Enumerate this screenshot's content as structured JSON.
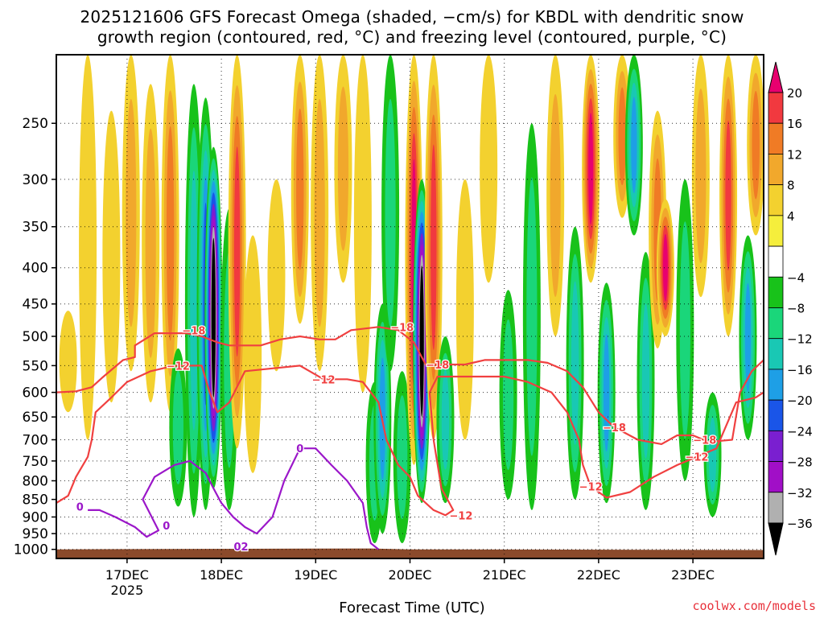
{
  "header": {
    "title_line1": "2025121606 GFS Forecast Omega (shaded, −cm/s) for KBDL with dendritic snow",
    "title_line2": "growth region (contoured, red, °C) and freezing level (contoured, purple, °C)"
  },
  "footer": {
    "xlabel": "Forecast Time (UTC)",
    "watermark": "coolwx.com/models"
  },
  "chart_data": {
    "type": "heatmap",
    "title": "2025121606 GFS Forecast Omega (shaded, −cm/s) for KBDL",
    "xlabel": "Forecast Time (UTC)",
    "ylabel": "",
    "y_axis": {
      "scale": "log-pressure",
      "units": "hPa",
      "ticks": [
        250,
        300,
        350,
        400,
        450,
        500,
        550,
        600,
        650,
        700,
        750,
        800,
        850,
        900,
        950,
        1000
      ],
      "range": [
        1030,
        200
      ]
    },
    "x_axis": {
      "start": "2025-12-16 06 UTC",
      "ticks": [
        {
          "label": "17DEC",
          "sub": "2025",
          "hour": 18
        },
        {
          "label": "18DEC",
          "sub": "",
          "hour": 42
        },
        {
          "label": "19DEC",
          "sub": "",
          "hour": 66
        },
        {
          "label": "20DEC",
          "sub": "",
          "hour": 90
        },
        {
          "label": "21DEC",
          "sub": "",
          "hour": 114
        },
        {
          "label": "22DEC",
          "sub": "",
          "hour": 138
        },
        {
          "label": "23DEC",
          "sub": "",
          "hour": 162
        }
      ],
      "range_hours": [
        0,
        180
      ]
    },
    "colorbar": {
      "labels": [
        "20",
        "16",
        "12",
        "8",
        "4",
        "−4",
        "−8",
        "−12",
        "−16",
        "−20",
        "−24",
        "−28",
        "−32",
        "−36"
      ],
      "colors": [
        "#e8006f",
        "#f1393f",
        "#f07b25",
        "#f1a82c",
        "#f3d12f",
        "#f5ee3c",
        "#ffffff",
        "#18c21a",
        "#1ad67a",
        "#19c8b4",
        "#1e9fe6",
        "#1a55e8",
        "#7a1fd0",
        "#a10fc7",
        "#b0b0b0",
        "#000000"
      ]
    },
    "omega_columns": [
      {
        "hour": 3,
        "p_top": 460,
        "p_bot": 640,
        "value": 6
      },
      {
        "hour": 8,
        "p_top": 200,
        "p_bot": 700,
        "value": 5
      },
      {
        "hour": 14,
        "p_top": 240,
        "p_bot": 620,
        "value": 4
      },
      {
        "hour": 19,
        "p_top": 200,
        "p_bot": 560,
        "value": 8
      },
      {
        "hour": 24,
        "p_top": 220,
        "p_bot": 620,
        "value": 10
      },
      {
        "hour": 29,
        "p_top": 200,
        "p_bot": 640,
        "value": 13
      },
      {
        "hour": 31,
        "p_top": 520,
        "p_bot": 870,
        "value": -9
      },
      {
        "hour": 35,
        "p_top": 220,
        "p_bot": 900,
        "value": -13
      },
      {
        "hour": 38,
        "p_top": 230,
        "p_bot": 880,
        "value": -20
      },
      {
        "hour": 40,
        "p_top": 270,
        "p_bot": 820,
        "value": -40
      },
      {
        "hour": 44,
        "p_top": 330,
        "p_bot": 880,
        "value": -10
      },
      {
        "hour": 46,
        "p_top": 200,
        "p_bot": 720,
        "value": 18
      },
      {
        "hour": 50,
        "p_top": 360,
        "p_bot": 780,
        "value": 6
      },
      {
        "hour": 56,
        "p_top": 300,
        "p_bot": 560,
        "value": 5
      },
      {
        "hour": 62,
        "p_top": 200,
        "p_bot": 480,
        "value": 13
      },
      {
        "hour": 67,
        "p_top": 200,
        "p_bot": 560,
        "value": 8
      },
      {
        "hour": 73,
        "p_top": 200,
        "p_bot": 420,
        "value": 10
      },
      {
        "hour": 78,
        "p_top": 200,
        "p_bot": 600,
        "value": 5
      },
      {
        "hour": 81,
        "p_top": 580,
        "p_bot": 980,
        "value": -9
      },
      {
        "hour": 83,
        "p_top": 450,
        "p_bot": 950,
        "value": -16
      },
      {
        "hour": 85,
        "p_top": 200,
        "p_bot": 560,
        "value": -10
      },
      {
        "hour": 88,
        "p_top": 560,
        "p_bot": 980,
        "value": -9
      },
      {
        "hour": 91,
        "p_top": 200,
        "p_bot": 760,
        "value": 20
      },
      {
        "hour": 93,
        "p_top": 300,
        "p_bot": 860,
        "value": -40
      },
      {
        "hour": 96,
        "p_top": 200,
        "p_bot": 700,
        "value": 16
      },
      {
        "hour": 99,
        "p_top": 500,
        "p_bot": 860,
        "value": -14
      },
      {
        "hour": 104,
        "p_top": 300,
        "p_bot": 700,
        "value": 6
      },
      {
        "hour": 110,
        "p_top": 200,
        "p_bot": 420,
        "value": 5
      },
      {
        "hour": 115,
        "p_top": 430,
        "p_bot": 850,
        "value": -10
      },
      {
        "hour": 121,
        "p_top": 250,
        "p_bot": 880,
        "value": -9
      },
      {
        "hour": 127,
        "p_top": 200,
        "p_bot": 500,
        "value": 8
      },
      {
        "hour": 132,
        "p_top": 350,
        "p_bot": 850,
        "value": -14
      },
      {
        "hour": 136,
        "p_top": 200,
        "p_bot": 420,
        "value": 20
      },
      {
        "hour": 140,
        "p_top": 420,
        "p_bot": 860,
        "value": -17
      },
      {
        "hour": 144,
        "p_top": 200,
        "p_bot": 340,
        "value": 12
      },
      {
        "hour": 147,
        "p_top": 200,
        "p_bot": 360,
        "value": -18
      },
      {
        "hour": 150,
        "p_top": 380,
        "p_bot": 880,
        "value": -13
      },
      {
        "hour": 153,
        "p_top": 240,
        "p_bot": 520,
        "value": 12
      },
      {
        "hour": 155,
        "p_top": 320,
        "p_bot": 500,
        "value": 20
      },
      {
        "hour": 160,
        "p_top": 300,
        "p_bot": 800,
        "value": -11
      },
      {
        "hour": 164,
        "p_top": 200,
        "p_bot": 440,
        "value": 9
      },
      {
        "hour": 167,
        "p_top": 600,
        "p_bot": 900,
        "value": -14
      },
      {
        "hour": 171,
        "p_top": 200,
        "p_bot": 500,
        "value": 16
      },
      {
        "hour": 176,
        "p_top": 360,
        "p_bot": 700,
        "value": -16
      },
      {
        "hour": 178,
        "p_top": 200,
        "p_bot": 360,
        "value": 14
      }
    ],
    "contours": [
      {
        "name": "-18",
        "color": "#f04040",
        "labels": [
          {
            "hour": 35,
            "p": 490,
            "text": "−18"
          },
          {
            "hour": 88,
            "p": 485,
            "text": "−18"
          },
          {
            "hour": 97,
            "p": 548,
            "text": "−18"
          },
          {
            "hour": 142,
            "p": 672,
            "text": "−18"
          },
          {
            "hour": 165,
            "p": 700,
            "text": "−18"
          }
        ],
        "points": [
          [
            0,
            600
          ],
          [
            5,
            598
          ],
          [
            9,
            590
          ],
          [
            12,
            570
          ],
          [
            17,
            540
          ],
          [
            20,
            535
          ],
          [
            20,
            515
          ],
          [
            25,
            495
          ],
          [
            33,
            495
          ],
          [
            37,
            500
          ],
          [
            41,
            510
          ],
          [
            44,
            515
          ],
          [
            52,
            515
          ],
          [
            57,
            505
          ],
          [
            62,
            500
          ],
          [
            67,
            505
          ],
          [
            71,
            505
          ],
          [
            75,
            490
          ],
          [
            82,
            485
          ],
          [
            87,
            490
          ],
          [
            91,
            510
          ],
          [
            94,
            548
          ],
          [
            104,
            548
          ],
          [
            109,
            540
          ],
          [
            115,
            540
          ],
          [
            120,
            540
          ],
          [
            125,
            545
          ],
          [
            130,
            560
          ],
          [
            134,
            590
          ],
          [
            138,
            640
          ],
          [
            142,
            672
          ],
          [
            148,
            700
          ],
          [
            154,
            710
          ],
          [
            158,
            690
          ],
          [
            162,
            690
          ],
          [
            166,
            705
          ],
          [
            172,
            700
          ],
          [
            174,
            600
          ],
          [
            177,
            560
          ],
          [
            180,
            540
          ]
        ]
      },
      {
        "name": "-12",
        "color": "#f04040",
        "labels": [
          {
            "hour": 31,
            "p": 550,
            "text": "−12"
          },
          {
            "hour": 68,
            "p": 575,
            "text": "−12"
          },
          {
            "hour": 103,
            "p": 895,
            "text": "−12"
          },
          {
            "hour": 136,
            "p": 815,
            "text": "−12"
          },
          {
            "hour": 163,
            "p": 740,
            "text": "−12"
          }
        ],
        "points": [
          [
            0,
            860
          ],
          [
            3,
            840
          ],
          [
            5,
            790
          ],
          [
            8,
            740
          ],
          [
            9,
            700
          ],
          [
            10,
            640
          ],
          [
            14,
            610
          ],
          [
            18,
            580
          ],
          [
            24,
            560
          ],
          [
            30,
            550
          ],
          [
            37,
            550
          ],
          [
            39,
            600
          ],
          [
            41,
            640
          ],
          [
            44,
            620
          ],
          [
            48,
            560
          ],
          [
            55,
            555
          ],
          [
            62,
            550
          ],
          [
            68,
            575
          ],
          [
            74,
            575
          ],
          [
            78,
            580
          ],
          [
            82,
            620
          ],
          [
            84,
            700
          ],
          [
            87,
            760
          ],
          [
            90,
            790
          ],
          [
            92,
            840
          ],
          [
            94,
            860
          ],
          [
            96,
            880
          ],
          [
            99,
            895
          ],
          [
            101,
            880
          ],
          [
            98,
            820
          ],
          [
            96,
            700
          ],
          [
            95,
            600
          ],
          [
            97,
            570
          ],
          [
            105,
            570
          ],
          [
            114,
            570
          ],
          [
            120,
            580
          ],
          [
            126,
            600
          ],
          [
            130,
            640
          ],
          [
            133,
            700
          ],
          [
            134,
            760
          ],
          [
            136,
            815
          ],
          [
            140,
            845
          ],
          [
            146,
            830
          ],
          [
            152,
            790
          ],
          [
            158,
            760
          ],
          [
            163,
            740
          ],
          [
            168,
            720
          ],
          [
            173,
            620
          ],
          [
            178,
            610
          ],
          [
            180,
            600
          ]
        ]
      },
      {
        "name": "0",
        "color": "#9b17c9",
        "labels": [
          {
            "hour": 6,
            "p": 870,
            "text": "0"
          },
          {
            "hour": 28,
            "p": 925,
            "text": "0"
          },
          {
            "hour": 47,
            "p": 990,
            "text": "02"
          },
          {
            "hour": 62,
            "p": 720,
            "text": "0"
          }
        ],
        "points": [
          [
            8,
            880
          ],
          [
            11,
            880
          ],
          [
            15,
            900
          ],
          [
            20,
            930
          ],
          [
            23,
            960
          ],
          [
            26,
            940
          ],
          [
            22,
            850
          ],
          [
            25,
            790
          ],
          [
            30,
            760
          ],
          [
            34,
            750
          ],
          [
            38,
            780
          ],
          [
            40,
            820
          ],
          [
            42,
            860
          ],
          [
            45,
            900
          ],
          [
            48,
            930
          ],
          [
            51,
            950
          ],
          [
            55,
            900
          ],
          [
            58,
            800
          ],
          [
            62,
            720
          ],
          [
            66,
            720
          ],
          [
            70,
            760
          ],
          [
            74,
            800
          ],
          [
            78,
            860
          ],
          [
            79,
            930
          ],
          [
            80,
            980
          ],
          [
            82,
            1000
          ]
        ]
      }
    ]
  }
}
